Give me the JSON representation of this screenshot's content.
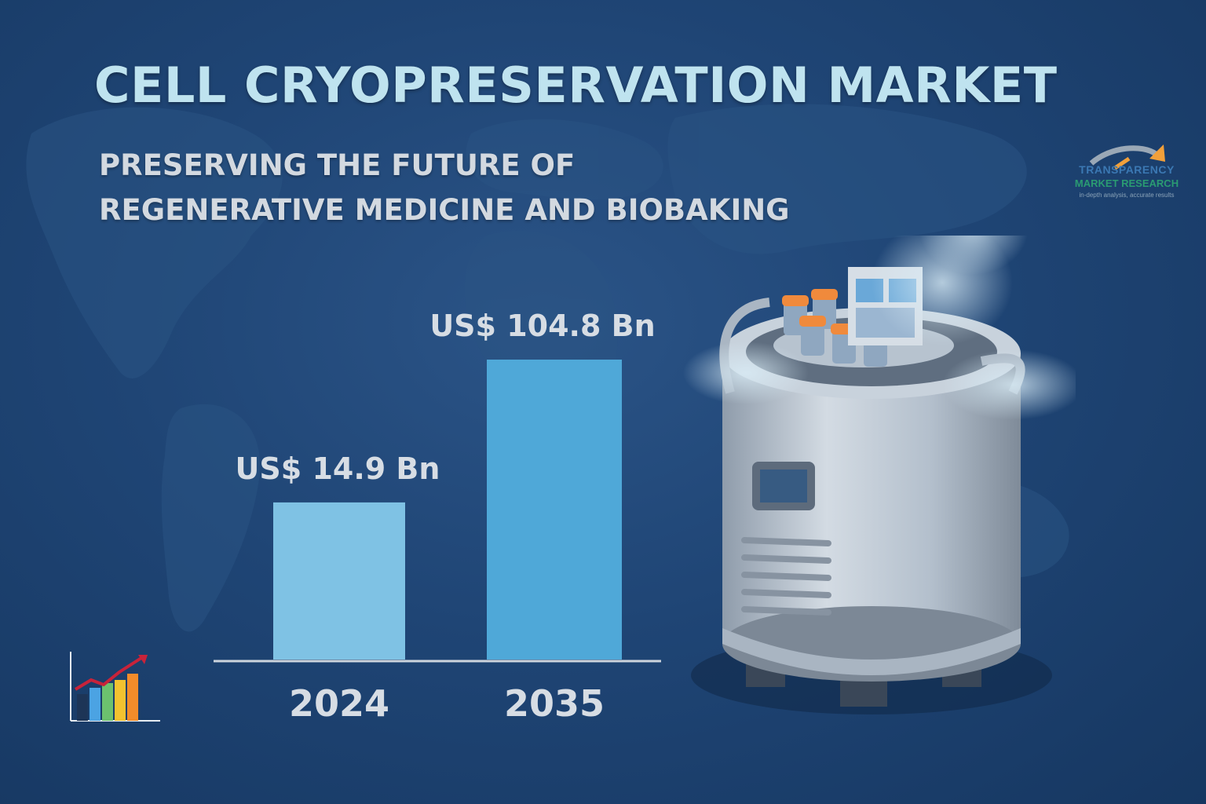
{
  "header": {
    "title": "CELL CRYOPRESERVATION MARKET",
    "subtitle_line1": "PRESERVING THE FUTURE OF",
    "subtitle_line2": "REGENERATIVE MEDICINE AND BIOBAKING"
  },
  "logo": {
    "line1": "TRANSPARENCY",
    "line2": "MARKET RESEARCH",
    "tagline": "in-depth analysis, accurate results"
  },
  "colors": {
    "background": "#1f4575",
    "title": "#bfe3ef",
    "bar_2024": "#7fc2e4",
    "bar_2035": "#4fa8d8",
    "baseline": "#cdd5dd"
  },
  "icons": [
    "world-map-icon",
    "cryo-tank-illustration",
    "growth-chart-icon",
    "logo-arrow-icon"
  ],
  "chart_data": {
    "type": "bar",
    "categories": [
      "2024",
      "2035"
    ],
    "values": [
      14.9,
      104.8
    ],
    "value_labels": [
      "US$ 14.9 Bn",
      "US$ 104.8 Bn"
    ],
    "unit": "US$ Bn",
    "title": "CELL CRYOPRESERVATION MARKET",
    "xlabel": "",
    "ylabel": "",
    "axis_scale": "non-linear (stylized)",
    "grid": false,
    "legend": "none"
  }
}
